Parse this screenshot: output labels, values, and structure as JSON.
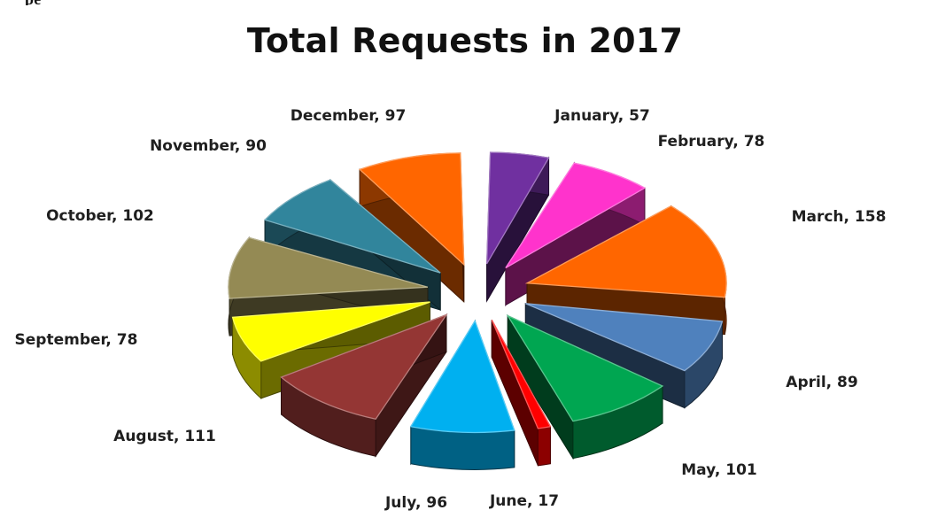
{
  "header_fragment": "pe",
  "chart_data": {
    "type": "pie",
    "title": "Total Requests in 2017",
    "categories": [
      "January",
      "February",
      "March",
      "April",
      "May",
      "June",
      "July",
      "August",
      "September",
      "October",
      "November",
      "December"
    ],
    "values": [
      57,
      78,
      158,
      89,
      101,
      17,
      96,
      111,
      78,
      102,
      90,
      97
    ],
    "data_labels": [
      "January,  57",
      "February, 78",
      "March,  158",
      "April, 89",
      "May,  101",
      "June, 17",
      "July,  96",
      "August, 111",
      "September, 78",
      "October, 102",
      "November, 90",
      "December, 97"
    ],
    "colors": [
      "#7030a0",
      "#ff33cc",
      "#ff6600",
      "#4f81bd",
      "#00a651",
      "#ff0000",
      "#00b0f0",
      "#943634",
      "#ffff00",
      "#948a54",
      "#31859c",
      "#ff6600"
    ],
    "exploded": true,
    "style": "3d"
  }
}
